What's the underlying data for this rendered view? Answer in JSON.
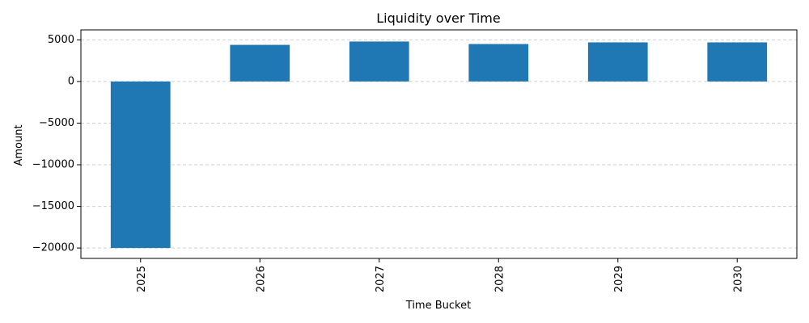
{
  "chart_data": {
    "type": "bar",
    "title": "Liquidity over Time",
    "xlabel": "Time Bucket",
    "ylabel": "Amount",
    "categories": [
      "2025",
      "2026",
      "2027",
      "2028",
      "2029",
      "2030"
    ],
    "values": [
      -20000,
      4400,
      4800,
      4500,
      4700,
      4700
    ],
    "ylim": [
      -21250,
      6200
    ],
    "yticks": [
      5000,
      0,
      -5000,
      -10000,
      -15000,
      -20000
    ],
    "ytick_labels": [
      "5000",
      "0",
      "−5000",
      "−10000",
      "−15000",
      "−20000"
    ],
    "grid": "y",
    "legend": "none",
    "colors": {
      "bar": "#1f77b4",
      "grid": "#b0b0b0",
      "axis": "#000000"
    }
  }
}
